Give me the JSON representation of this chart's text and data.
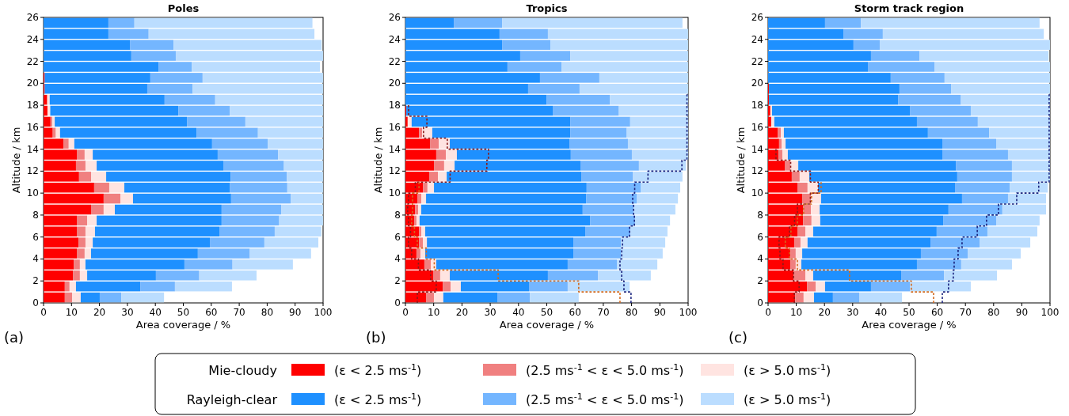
{
  "chart_data": [
    {
      "type": "bar",
      "orientation": "horizontal",
      "stacked": true,
      "title": "Poles",
      "xlabel": "Area coverage / %",
      "ylabel": "Altitude / km",
      "legend": "bottom",
      "x": [
        0.5,
        1.5,
        2.5,
        3.5,
        4.5,
        5.5,
        6.5,
        7.5,
        8.5,
        9.5,
        10.5,
        11.5,
        12.5,
        13.5,
        14.5,
        15.5,
        16.5,
        17.5,
        18.5,
        19.5,
        20.5,
        21.5,
        22.5,
        23.5,
        24.5,
        25.5
      ],
      "xlim": [
        0,
        100
      ],
      "xticks": [
        0,
        10,
        20,
        30,
        40,
        50,
        60,
        70,
        80,
        90,
        100
      ],
      "ylim": [
        0,
        26
      ],
      "yticks": [
        0,
        2,
        4,
        6,
        8,
        10,
        12,
        14,
        16,
        18,
        20,
        22,
        24,
        26
      ],
      "annotations": [
        "(a)",
        "Mie-cloudy",
        "Rayleigh-clear"
      ],
      "series": [
        {
          "name": "(ε < 2.5 ms$^{-1}$)",
          "color": "#ff0000",
          "values": [
            7.6,
            7.6,
            10.5,
            10.8,
            11.9,
            12.5,
            11.9,
            11.9,
            17.0,
            21.5,
            18.1,
            12.7,
            11.6,
            11.9,
            7.1,
            3.3,
            2.5,
            1.4,
            1.2,
            0.4,
            0.4,
            0,
            0,
            0,
            0,
            0
          ]
        },
        {
          "name": "(2.5 ms$^{-1}$ < ε < 5.0 ms$^{-1}$)",
          "color": "#f08080",
          "values": [
            2.6,
            1.7,
            2.5,
            2.2,
            2.8,
            2.5,
            3.1,
            3.7,
            4.5,
            6.0,
            5.4,
            4.3,
            3.4,
            2.8,
            1.9,
            1.1,
            0.6,
            0,
            0.3,
            0,
            0,
            0,
            0,
            0,
            0,
            0
          ]
        },
        {
          "name": "(ε > 5.0 ms$^{-1}$)",
          "color": "#ffe4e1",
          "values": [
            3.1,
            2.3,
            2.6,
            2.0,
            2.3,
            2.6,
            3.4,
            3.4,
            4.0,
            4.5,
            5.4,
            5.4,
            4.0,
            2.9,
            2.0,
            1.5,
            0.9,
            1.0,
            0.7,
            0,
            0,
            0,
            0,
            0,
            0,
            0
          ]
        },
        {
          "name": "(ε < 2.5 ms$^{-1}$)",
          "color": "#1e90ff",
          "values": [
            6.8,
            23.0,
            24.6,
            35.4,
            38.2,
            41.9,
            44.5,
            44.7,
            38.2,
            35.1,
            37.7,
            44.5,
            45.3,
            44.7,
            49.3,
            48.8,
            47.3,
            45.8,
            41.1,
            36.7,
            37.8,
            41.1,
            31.4,
            30.9,
            23.2,
            23.2
          ]
        },
        {
          "name": "(2.5 ms$^{-1}$ < ε < 5.0 ms$^{-1}$)",
          "color": "#74b6ff",
          "values": [
            7.7,
            12.4,
            15.5,
            17.2,
            18.6,
            19.5,
            19.8,
            20.6,
            21.3,
            21.3,
            20.6,
            20.1,
            21.7,
            21.6,
            19.9,
            22.0,
            20.9,
            18.4,
            18.1,
            16.2,
            18.7,
            11.9,
            15.9,
            15.6,
            14.4,
            9.3
          ]
        },
        {
          "name": "(ε > 5.0 ms$^{-1}$)",
          "color": "#bbddff",
          "values": [
            15.3,
            20.4,
            20.5,
            21.6,
            21.9,
            19.3,
            16.7,
            15.7,
            15.0,
            11.6,
            12.8,
            13.0,
            14.0,
            16.1,
            19.8,
            23.3,
            27.8,
            33.4,
            38.6,
            46.7,
            43.1,
            45.9,
            52.7,
            53.0,
            59.3,
            63.7
          ]
        }
      ]
    },
    {
      "type": "bar",
      "orientation": "horizontal",
      "stacked": true,
      "title": "Tropics",
      "xlabel": "Area coverage / %",
      "ylabel": "Altitude / km",
      "line_style": "dotted",
      "x": [
        0.5,
        1.5,
        2.5,
        3.5,
        4.5,
        5.5,
        6.5,
        7.5,
        8.5,
        9.5,
        10.5,
        11.5,
        12.5,
        13.5,
        14.5,
        15.5,
        16.5,
        17.5,
        18.5,
        19.5,
        20.5,
        21.5,
        22.5,
        23.5,
        24.5,
        25.5
      ],
      "xlim": [
        0,
        100
      ],
      "xticks": [
        0,
        10,
        20,
        30,
        40,
        50,
        60,
        70,
        80,
        90,
        100
      ],
      "ylim": [
        0,
        26
      ],
      "yticks": [
        0,
        2,
        4,
        6,
        8,
        10,
        12,
        14,
        16,
        18,
        20,
        22,
        24,
        26
      ],
      "annotations": [
        "(b)"
      ],
      "series": [
        {
          "color": "#ff0000",
          "values": [
            7.3,
            13.2,
            9.8,
            6.7,
            3.9,
            4.8,
            4.8,
            3.1,
            3.4,
            4.2,
            6.2,
            8.4,
            10.1,
            10.9,
            8.7,
            4.8,
            0.8,
            0.3,
            0,
            0,
            0,
            0,
            0,
            0,
            0,
            0
          ]
        },
        {
          "color": "#f08080",
          "values": [
            2.8,
            2.8,
            2.5,
            2.3,
            1.4,
            1.4,
            0.8,
            0.8,
            1.1,
            1.4,
            1.6,
            3.1,
            3.6,
            3.4,
            3.1,
            1.1,
            0,
            0,
            0,
            0,
            0,
            0,
            0,
            0,
            0,
            0
          ]
        },
        {
          "color": "#ffe4e1",
          "values": [
            3.3,
            3.6,
            3.4,
            1.9,
            1.7,
            1.4,
            1.4,
            1.1,
            1.1,
            1.7,
            2.3,
            3.1,
            3.7,
            3.9,
            3.9,
            3.6,
            1.4,
            0,
            0,
            0,
            0,
            0,
            0,
            0,
            0,
            0
          ]
        },
        {
          "color": "#1e90ff",
          "values": [
            19.1,
            24.1,
            34.7,
            46.5,
            52.4,
            51.8,
            56.6,
            60.3,
            57.1,
            56.6,
            54.0,
            47.6,
            44.5,
            40.3,
            42.3,
            48.8,
            56.1,
            51.8,
            49.9,
            43.4,
            47.6,
            36.1,
            40.6,
            34.2,
            33.3,
            17.1
          ]
        },
        {
          "color": "#74b6ff",
          "values": [
            11.5,
            13.7,
            17.7,
            17.4,
            16.8,
            16.8,
            16.0,
            15.9,
            18.0,
            17.9,
            19.1,
            18.2,
            20.7,
            21.6,
            20.7,
            20.0,
            21.2,
            23.4,
            22.4,
            18.2,
            21.0,
            19.1,
            17.7,
            17.1,
            17.1,
            17.1
          ]
        },
        {
          "color": "#bbddff",
          "values": [
            17.3,
            21.9,
            18.7,
            14.3,
            14.8,
            15.7,
            13.1,
            12.4,
            14.8,
            14.6,
            14.0,
            17.6,
            16.6,
            19.9,
            21.3,
            21.7,
            20.5,
            24.5,
            27.7,
            38.4,
            31.4,
            44.8,
            41.7,
            48.7,
            49.6,
            63.8
          ]
        },
        {
          "type": "line",
          "color": "#8b1a1a",
          "x": [
            0,
            1,
            1,
            2,
            2,
            3,
            3,
            4,
            4,
            5,
            5,
            6,
            6,
            7,
            7,
            8,
            8,
            9,
            9,
            10,
            10,
            11,
            11,
            12,
            12,
            13,
            13,
            14,
            14,
            15,
            15,
            16,
            16,
            17,
            17,
            18
          ],
          "values": [
            4.2,
            4.2,
            10.9,
            10.9,
            8.9,
            8.9,
            4.6,
            4.6,
            2.2,
            2.2,
            1.1,
            1.1,
            1.8,
            1.8,
            1.1,
            1.1,
            0.8,
            0.8,
            1.1,
            1.1,
            3.5,
            3.5,
            15.8,
            15.8,
            28.8,
            28.8,
            29.4,
            29.4,
            14.8,
            14.8,
            6.4,
            6.4,
            7.6,
            7.6,
            1.1,
            1.1
          ]
        },
        {
          "type": "line",
          "color": "#d2691e",
          "x": [
            0,
            1,
            1,
            2,
            2,
            3,
            3,
            4,
            4,
            5,
            5,
            6,
            6,
            7,
            7,
            8,
            8,
            9,
            9,
            10,
            10,
            11
          ],
          "values": [
            75.9,
            75.9,
            61.3,
            61.3,
            32.8,
            32.8,
            10.2,
            10.2,
            7.4,
            7.4,
            4.2,
            4.2,
            3.2,
            3.2,
            2.2,
            2.2,
            2.5,
            2.5,
            2.5,
            2.5,
            4.8,
            4.8
          ]
        },
        {
          "type": "line",
          "color": "#1a237e",
          "x": [
            0,
            1,
            1,
            2,
            2,
            3,
            3,
            4,
            4,
            5,
            5,
            6,
            6,
            7,
            7,
            8,
            8,
            9,
            9,
            10,
            10,
            11,
            11,
            12,
            12,
            13,
            13,
            19
          ],
          "values": [
            79.8,
            79.8,
            77.3,
            77.3,
            76.5,
            76.5,
            75.9,
            75.9,
            76.5,
            76.5,
            76.8,
            76.8,
            79.3,
            79.3,
            81.0,
            81.0,
            80.7,
            80.7,
            80.4,
            80.4,
            81.1,
            81.1,
            85.8,
            85.8,
            97.8,
            97.8,
            99.6,
            99.6
          ]
        }
      ]
    },
    {
      "type": "bar",
      "orientation": "horizontal",
      "stacked": true,
      "title": "Storm track region",
      "xlabel": "Area coverage / %",
      "ylabel": "Altitude / km",
      "line_style": "dotted",
      "x": [
        0.5,
        1.5,
        2.5,
        3.5,
        4.5,
        5.5,
        6.5,
        7.5,
        8.5,
        9.5,
        10.5,
        11.5,
        12.5,
        13.5,
        14.5,
        15.5,
        16.5,
        17.5,
        18.5,
        19.5,
        20.5,
        21.5,
        22.5,
        23.5,
        24.5,
        25.5
      ],
      "xlim": [
        0,
        100
      ],
      "xticks": [
        0,
        10,
        20,
        30,
        40,
        50,
        60,
        70,
        80,
        90,
        100
      ],
      "ylim": [
        0,
        26
      ],
      "yticks": [
        0,
        2,
        4,
        6,
        8,
        10,
        12,
        14,
        16,
        18,
        20,
        22,
        24,
        26
      ],
      "annotations": [
        "(c)"
      ],
      "series": [
        {
          "color": "#ff0000",
          "values": [
            9.6,
            13.8,
            9.0,
            7.9,
            7.9,
            9.3,
            10.4,
            12.4,
            12.4,
            12.1,
            10.4,
            8.4,
            5.9,
            3.7,
            3.9,
            3.4,
            1.1,
            0.8,
            0.3,
            0.3,
            0,
            0,
            0,
            0,
            0,
            0
          ]
        },
        {
          "color": "#f08080",
          "values": [
            3.0,
            3.1,
            4.2,
            1.9,
            1.9,
            2.2,
            2.8,
            3.0,
            2.8,
            3.1,
            3.6,
            2.8,
            2.0,
            1.4,
            0.9,
            1.1,
            0,
            0,
            0,
            0,
            0,
            0,
            0,
            0,
            0,
            0
          ]
        },
        {
          "color": "#ffe4e1",
          "values": [
            3.7,
            3.3,
            2.8,
            2.0,
            2.3,
            2.5,
            2.8,
            3.1,
            3.1,
            3.6,
            3.7,
            3.4,
            2.8,
            1.9,
            1.4,
            1.1,
            1.1,
            0.6,
            0,
            0,
            0,
            0,
            0,
            0,
            0,
            0
          ]
        },
        {
          "color": "#1e90ff",
          "values": [
            6.7,
            16.3,
            31.2,
            41.0,
            42.1,
            43.6,
            43.8,
            43.6,
            45.7,
            50.0,
            48.6,
            52.5,
            55.9,
            54.8,
            55.6,
            51.1,
            50.6,
            48.9,
            45.8,
            46.3,
            43.5,
            35.4,
            36.5,
            30.3,
            26.7,
            20.2
          ]
        },
        {
          "color": "#74b6ff",
          "values": [
            9.3,
            13.8,
            15.2,
            15.7,
            16.6,
            17.4,
            18.0,
            18.8,
            19.1,
            16.3,
            19.4,
            19.4,
            19.9,
            23.3,
            19.1,
            21.7,
            21.6,
            21.6,
            22.3,
            18.3,
            19.1,
            23.6,
            17.2,
            9.3,
            14.0,
            12.7
          ]
        },
        {
          "color": "#bbddff",
          "values": [
            15.2,
            21.6,
            18.8,
            18.0,
            18.8,
            18.0,
            17.7,
            15.4,
            15.5,
            13.5,
            13.5,
            13.5,
            13.5,
            14.9,
            19.1,
            21.6,
            25.6,
            28.1,
            31.6,
            35.1,
            37.4,
            41.0,
            45.8,
            60.4,
            57.1,
            63.4
          ]
        },
        {
          "type": "line",
          "color": "#8b1a1a",
          "x": [
            0,
            1,
            1,
            2,
            2,
            3,
            3,
            4,
            4,
            5,
            5,
            6,
            6,
            7,
            7,
            8,
            8,
            9,
            9,
            10,
            10,
            11,
            11,
            12,
            12,
            13,
            13,
            14
          ],
          "values": [
            9.3,
            9.3,
            11.0,
            11.0,
            9.0,
            9.0,
            5.3,
            5.3,
            4.2,
            4.2,
            3.9,
            3.9,
            7.6,
            7.6,
            9.4,
            9.4,
            10.4,
            10.4,
            15.0,
            15.0,
            17.8,
            17.8,
            15.0,
            15.0,
            8.0,
            8.0,
            2.8,
            2.8
          ]
        },
        {
          "type": "line",
          "color": "#d2691e",
          "x": [
            0,
            1,
            1,
            2,
            2,
            3,
            3,
            4,
            4,
            5,
            5,
            6,
            6,
            7,
            7,
            8,
            8,
            9,
            9,
            10,
            10,
            11
          ],
          "values": [
            58.7,
            58.7,
            50.8,
            50.8,
            28.9,
            28.9,
            10.4,
            10.4,
            7.6,
            7.6,
            6.1,
            6.1,
            8.1,
            8.1,
            10.4,
            10.4,
            12.6,
            12.6,
            15.4,
            15.4,
            18.8,
            18.8
          ]
        },
        {
          "type": "line",
          "color": "#1a237e",
          "x": [
            0,
            1,
            1,
            2,
            2,
            3,
            3,
            4,
            4,
            5,
            5,
            6,
            6,
            7,
            7,
            8,
            8,
            9,
            9,
            10,
            10,
            11,
            11,
            19
          ],
          "values": [
            61.8,
            61.8,
            64.0,
            64.0,
            65.7,
            65.7,
            66.0,
            66.0,
            67.4,
            67.4,
            68.8,
            68.8,
            74.2,
            74.2,
            77.5,
            77.5,
            81.7,
            81.7,
            88.2,
            88.2,
            96.0,
            96.0,
            99.7,
            99.7
          ]
        }
      ]
    }
  ]
}
